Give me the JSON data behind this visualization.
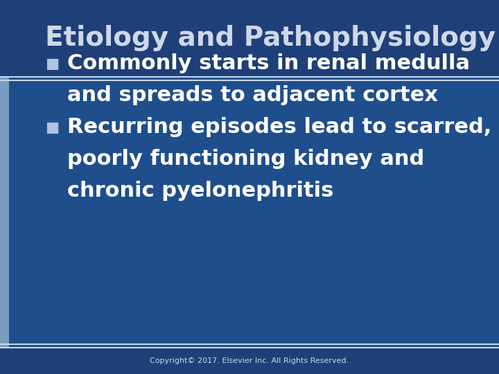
{
  "title": "Etiology and Pathophysiology",
  "title_color": "#cdd8e8",
  "title_fontsize": 28,
  "title_bold": true,
  "bg_color_dark": "#1f3f78",
  "bg_color_main": "#1f4e8c",
  "left_bar_color": "#7a9cc0",
  "separator_color_light": "#c8d8e8",
  "bullet_color": "#b0c4de",
  "text_color": "#ffffff",
  "bullet_lines": [
    [
      "Commonly starts in renal medulla",
      "and spreads to adjacent cortex"
    ],
    [
      "Recurring episodes lead to scarred,",
      "poorly functioning kidney and",
      "chronic pyelonephritis"
    ]
  ],
  "footer_text": "Copyright© 2017. Elsevier Inc. All Rights Reserved.",
  "footer_color": "#c8d8e8",
  "footer_fontsize": 8,
  "text_fontsize": 22,
  "title_bar_height": 0.205,
  "left_bar_width": 0.018
}
